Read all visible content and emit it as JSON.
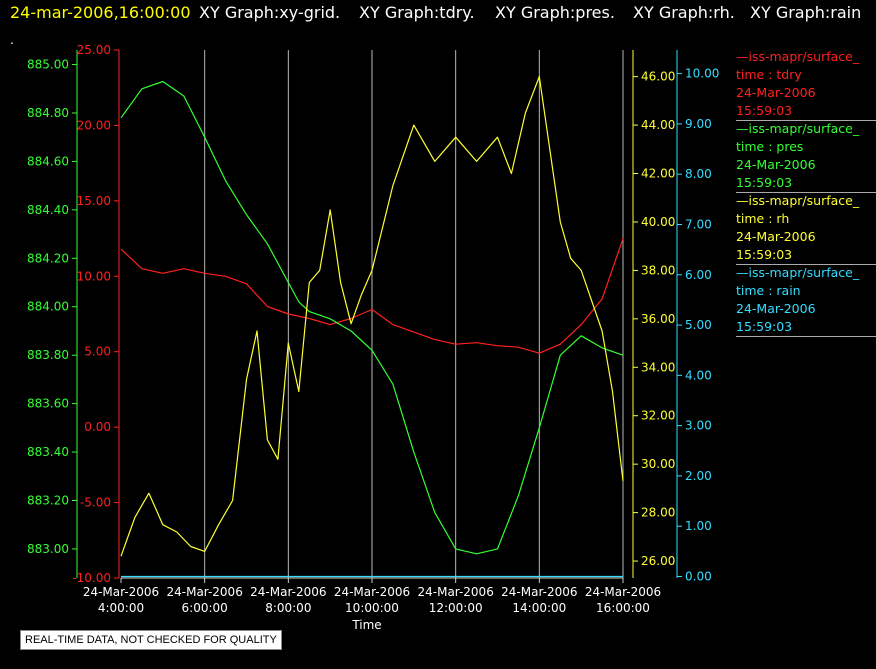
{
  "header": {
    "timestamp": "24-mar-2006,16:00:00",
    "graph_titles": [
      "XY Graph:xy-grid.",
      "XY Graph:tdry.",
      "XY Graph:pres.",
      "XY Graph:rh.",
      "XY Graph:rain"
    ],
    "timestamp_color": "#ffff00",
    "title_color": "#ffffff"
  },
  "marker": ".",
  "notice": "REAL-TIME DATA, NOT CHECKED FOR QUALITY",
  "legend": [
    {
      "source": "—iss-mapr/surface_",
      "field": "time : tdry",
      "date": "24-Mar-2006",
      "time": "15:59:03",
      "color": "#ff2020"
    },
    {
      "source": "—iss-mapr/surface_",
      "field": "time : pres",
      "date": "24-Mar-2006",
      "time": "15:59:03",
      "color": "#33ff33"
    },
    {
      "source": "—iss-mapr/surface_",
      "field": "time : rh",
      "date": "24-Mar-2006",
      "time": "15:59:03",
      "color": "#ffff33"
    },
    {
      "source": "—iss-mapr/surface_",
      "field": "time : rain",
      "date": "24-Mar-2006",
      "time": "15:59:03",
      "color": "#33ddff"
    }
  ],
  "chart_data": {
    "type": "line",
    "xlabel": "Time",
    "x_domain": [
      "24-Mar-2006 4:00:00",
      "24-Mar-2006 16:00:00"
    ],
    "x_ticks": [
      {
        "date": "24-Mar-2006",
        "time": "4:00:00"
      },
      {
        "date": "24-Mar-2006",
        "time": "6:00:00"
      },
      {
        "date": "24-Mar-2006",
        "time": "8:00:00"
      },
      {
        "date": "24-Mar-2006",
        "time": "10:00:00"
      },
      {
        "date": "24-Mar-2006",
        "time": "12:00:00"
      },
      {
        "date": "24-Mar-2006",
        "time": "14:00:00"
      },
      {
        "date": "24-Mar-2006",
        "time": "16:00:00"
      }
    ],
    "grid": true,
    "axes": [
      {
        "id": "pres",
        "side": "left",
        "color": "#33ff33",
        "range": [
          882.88,
          885.06
        ],
        "ticks": [
          "883.00",
          "883.20",
          "883.40",
          "883.60",
          "883.80",
          "884.00",
          "884.20",
          "884.40",
          "884.60",
          "884.80",
          "885.00"
        ]
      },
      {
        "id": "tdry",
        "side": "left",
        "color": "#ff2020",
        "range": [
          -10.0,
          25.0
        ],
        "ticks": [
          "-10.00",
          "-5.00",
          "0.00",
          "5.00",
          "10.00",
          "15.00",
          "20.00",
          "25.00"
        ]
      },
      {
        "id": "rh",
        "side": "right",
        "color": "#ffff33",
        "range": [
          25.3,
          47.1
        ],
        "ticks": [
          "26.00",
          "28.00",
          "30.00",
          "32.00",
          "34.00",
          "36.00",
          "38.00",
          "40.00",
          "42.00",
          "44.00",
          "46.00"
        ]
      },
      {
        "id": "rain",
        "side": "right",
        "color": "#33ddff",
        "range": [
          -0.03,
          10.47
        ],
        "ticks": [
          "0.00",
          "1.00",
          "2.00",
          "3.00",
          "4.00",
          "5.00",
          "6.00",
          "7.00",
          "8.00",
          "9.00",
          "10.00"
        ]
      }
    ],
    "series": [
      {
        "name": "tdry",
        "axis": "tdry",
        "color": "#ff2020",
        "x": [
          "4:00",
          "4:30",
          "5:00",
          "5:30",
          "6:00",
          "6:30",
          "7:00",
          "7:30",
          "8:00",
          "8:30",
          "9:00",
          "9:30",
          "10:00",
          "10:30",
          "11:00",
          "11:30",
          "12:00",
          "12:30",
          "13:00",
          "13:30",
          "14:00",
          "14:30",
          "15:00",
          "15:30",
          "16:00"
        ],
        "y": [
          11.8,
          10.5,
          10.2,
          10.5,
          10.2,
          10.0,
          9.5,
          8.0,
          7.5,
          7.2,
          6.8,
          7.2,
          7.8,
          6.8,
          6.3,
          5.8,
          5.5,
          5.6,
          5.4,
          5.3,
          4.9,
          5.5,
          6.8,
          8.5,
          12.5
        ]
      },
      {
        "name": "pres",
        "axis": "pres",
        "color": "#33ff33",
        "x": [
          "4:00",
          "4:30",
          "5:00",
          "5:30",
          "6:00",
          "6:30",
          "7:00",
          "7:30",
          "8:00",
          "8:15",
          "8:30",
          "9:00",
          "9:30",
          "10:00",
          "10:30",
          "11:00",
          "11:30",
          "12:00",
          "12:30",
          "13:00",
          "13:30",
          "14:00",
          "14:30",
          "15:00",
          "15:30",
          "16:00"
        ],
        "y": [
          884.78,
          884.9,
          884.93,
          884.87,
          884.7,
          884.52,
          884.38,
          884.26,
          884.1,
          884.02,
          883.98,
          883.95,
          883.9,
          883.82,
          883.68,
          883.4,
          883.15,
          883.0,
          882.98,
          883.0,
          883.22,
          883.5,
          883.8,
          883.88,
          883.83,
          883.8
        ]
      },
      {
        "name": "rh",
        "axis": "rh",
        "color": "#ffff33",
        "x": [
          "4:00",
          "4:20",
          "4:40",
          "5:00",
          "5:20",
          "5:40",
          "6:00",
          "6:20",
          "6:40",
          "7:00",
          "7:15",
          "7:30",
          "7:45",
          "8:00",
          "8:15",
          "8:30",
          "8:45",
          "9:00",
          "9:15",
          "9:30",
          "9:45",
          "10:00",
          "10:30",
          "11:00",
          "11:30",
          "12:00",
          "12:30",
          "13:00",
          "13:20",
          "13:40",
          "14:00",
          "14:15",
          "14:30",
          "14:45",
          "15:00",
          "15:30",
          "15:45",
          "16:00"
        ],
        "y": [
          26.2,
          27.8,
          28.8,
          27.5,
          27.2,
          26.6,
          26.4,
          27.5,
          28.5,
          33.5,
          35.5,
          31.0,
          30.2,
          35.0,
          33.0,
          37.5,
          38.0,
          40.5,
          37.5,
          35.8,
          37.0,
          38.0,
          41.5,
          44.0,
          42.5,
          43.5,
          42.5,
          43.5,
          42.0,
          44.5,
          46.0,
          43.0,
          40.0,
          38.5,
          38.0,
          35.5,
          33.0,
          29.3
        ]
      },
      {
        "name": "rain",
        "axis": "rain",
        "color": "#33ddff",
        "x": [
          "4:00",
          "16:00"
        ],
        "y": [
          0.0,
          0.0
        ]
      }
    ]
  }
}
